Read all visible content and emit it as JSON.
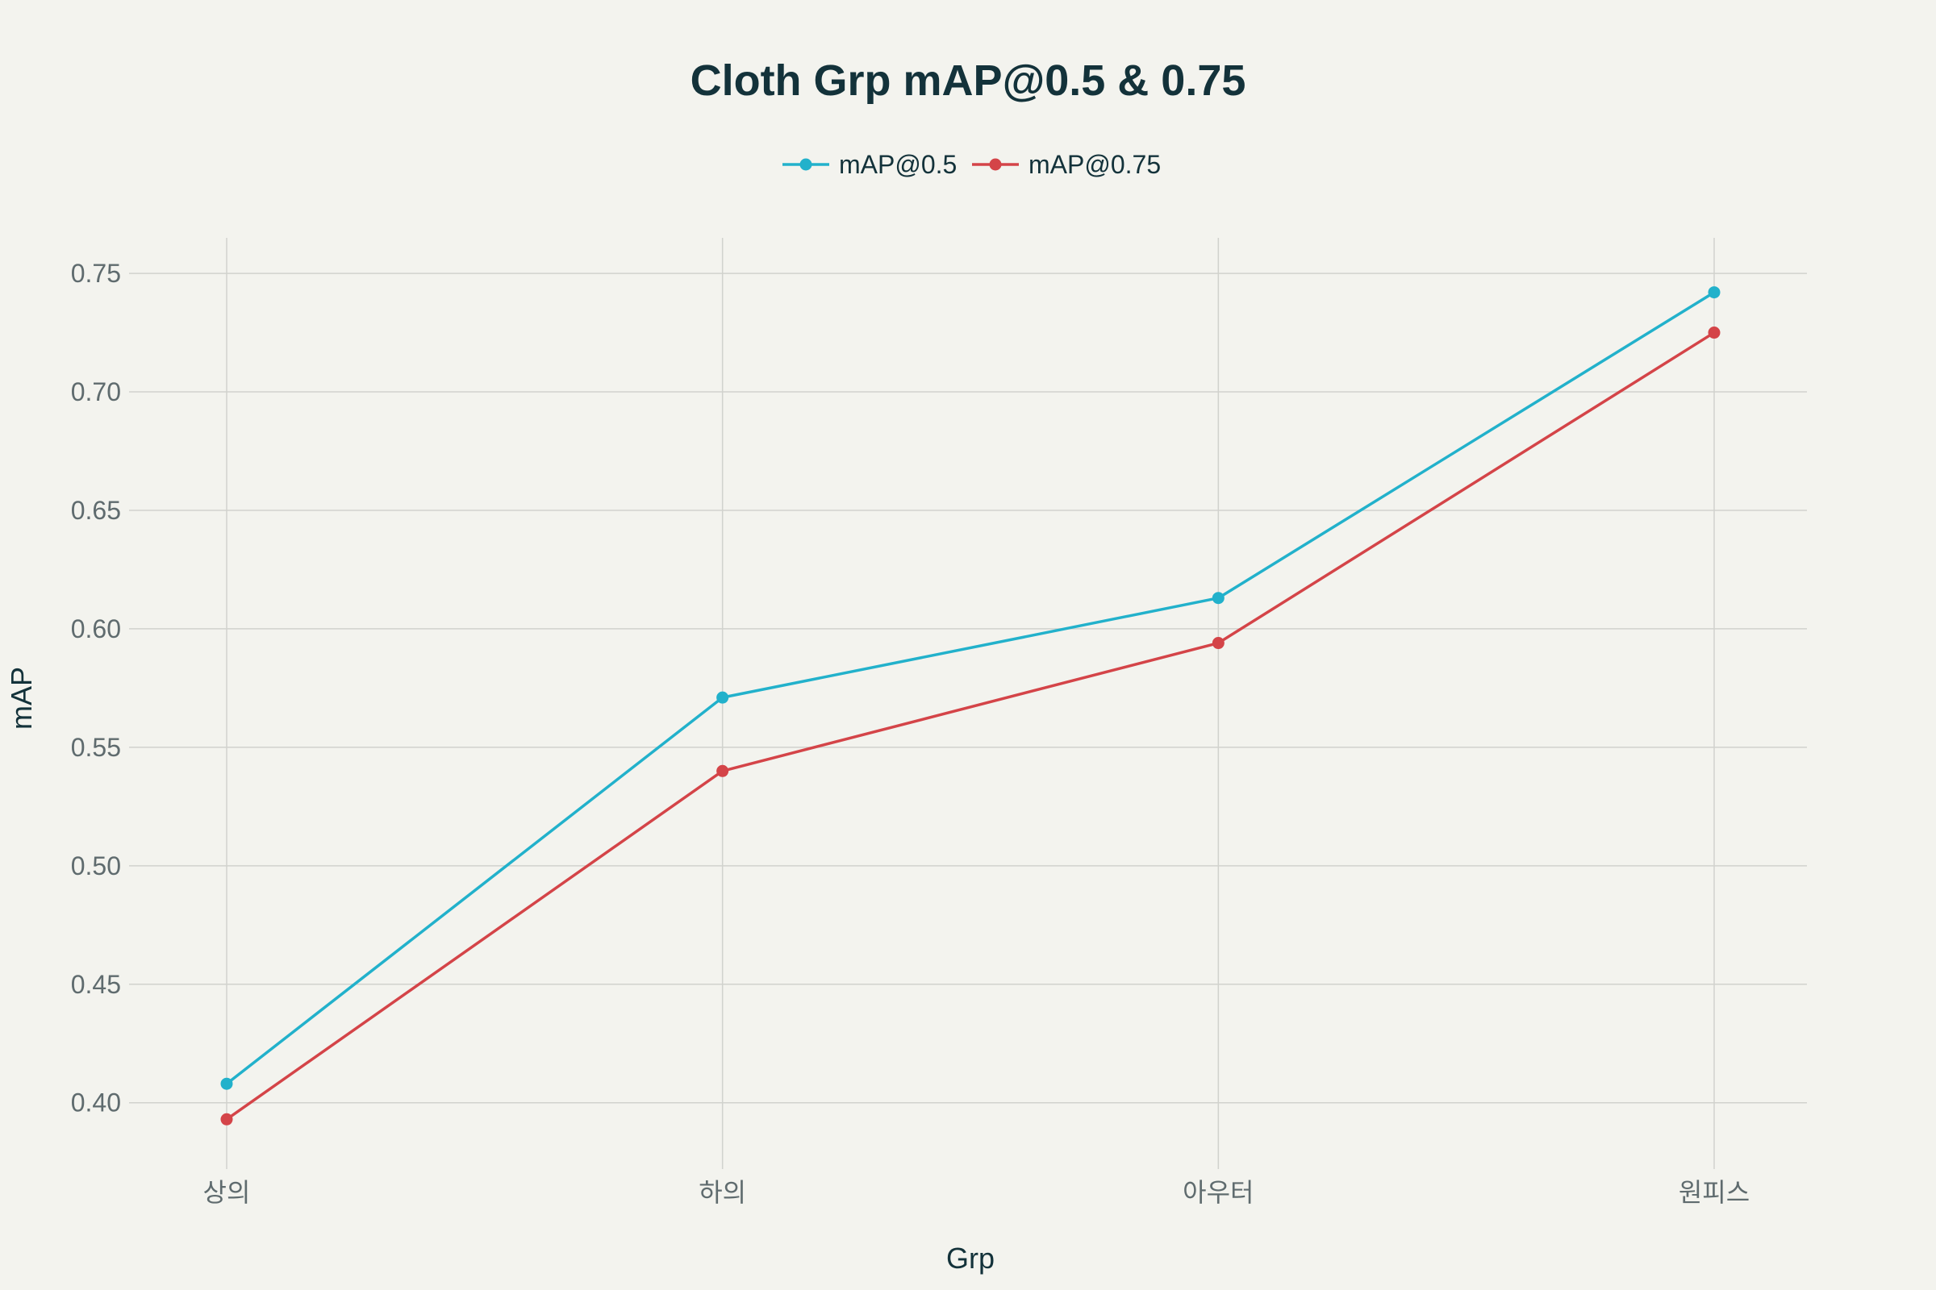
{
  "chart_data": {
    "type": "line",
    "title": "Cloth Grp mAP@0.5 & 0.75",
    "xlabel": "Grp",
    "ylabel": "mAP",
    "categories": [
      "상의",
      "하의",
      "아우터",
      "원피스"
    ],
    "ylim": [
      0.372,
      0.765
    ],
    "yticks": [
      "0.40",
      "0.45",
      "0.50",
      "0.55",
      "0.60",
      "0.65",
      "0.70",
      "0.75"
    ],
    "grid": true,
    "legend_position": "top-center",
    "series": [
      {
        "name": "mAP@0.5",
        "color": "#22b1cb",
        "values": [
          0.408,
          0.571,
          0.613,
          0.742
        ]
      },
      {
        "name": "mAP@0.75",
        "color": "#d44448",
        "values": [
          0.393,
          0.54,
          0.594,
          0.725
        ]
      }
    ]
  }
}
